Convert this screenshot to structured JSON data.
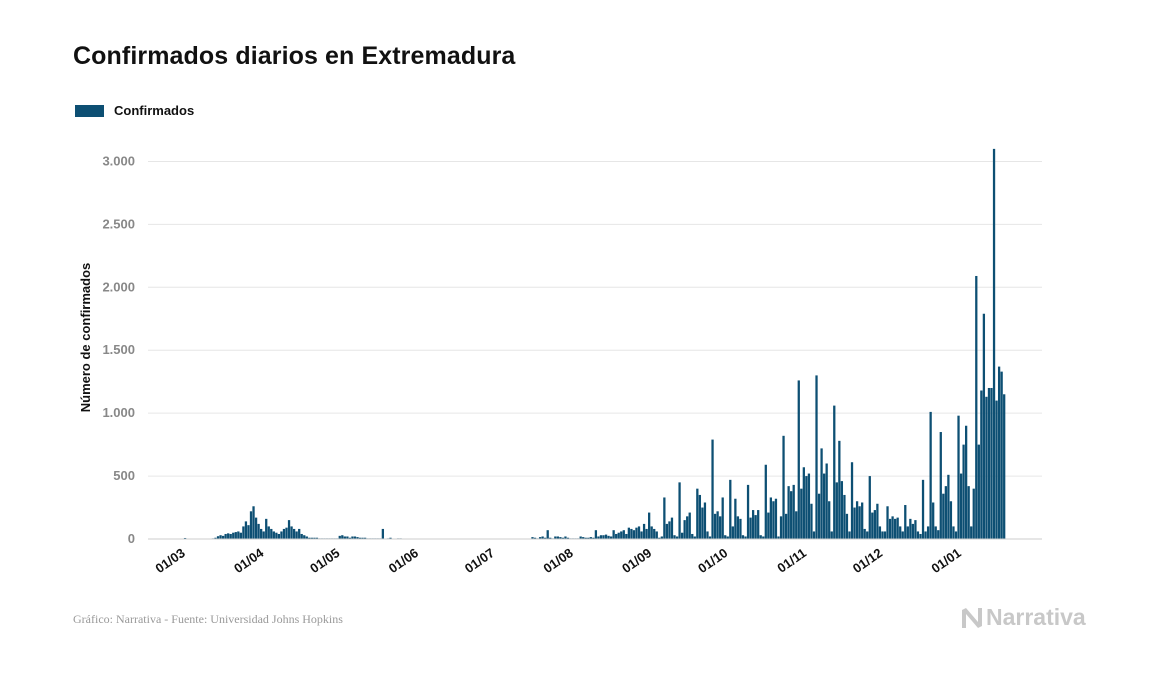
{
  "chart_data": {
    "type": "bar",
    "title": "Confirmados diarios en Extremadura",
    "legend": {
      "placement": "top-left",
      "entries": [
        "Confirmados"
      ]
    },
    "ylabel": "Número de confirmados",
    "xlabel": "",
    "ylim": [
      0,
      3250
    ],
    "yticks": [
      0,
      500,
      1000,
      1500,
      2000,
      2500,
      3000
    ],
    "ytick_labels": [
      "0",
      "500",
      "1.000",
      "1.500",
      "2.000",
      "2.500",
      "3.000"
    ],
    "x_tick_labels": [
      "01/03",
      "01/04",
      "01/05",
      "01/06",
      "01/07",
      "01/08",
      "01/09",
      "01/10",
      "01/11",
      "01/12",
      "01/01"
    ],
    "x_tick_dates": [
      "2020-03-01",
      "2020-04-01",
      "2020-05-01",
      "2020-06-01",
      "2020-07-01",
      "2020-08-01",
      "2020-09-01",
      "2020-10-01",
      "2020-11-01",
      "2020-12-01",
      "2021-01-01"
    ],
    "x_start": "2020-02-26",
    "grid": true,
    "series": [
      {
        "name": "Confirmados",
        "color": "#0d4f73",
        "values": [
          0,
          0,
          0,
          0,
          0,
          0,
          8,
          0,
          0,
          0,
          0,
          0,
          0,
          0,
          0,
          0,
          0,
          5,
          10,
          22,
          30,
          25,
          40,
          45,
          40,
          50,
          55,
          60,
          50,
          100,
          140,
          110,
          220,
          260,
          170,
          120,
          80,
          60,
          160,
          100,
          80,
          60,
          50,
          40,
          60,
          80,
          90,
          150,
          100,
          80,
          60,
          80,
          40,
          30,
          20,
          10,
          10,
          10,
          10,
          5,
          5,
          5,
          5,
          5,
          5,
          5,
          5,
          25,
          30,
          20,
          20,
          10,
          20,
          20,
          15,
          10,
          10,
          10,
          5,
          5,
          5,
          5,
          5,
          5,
          80,
          0,
          5,
          10,
          0,
          0,
          5,
          5,
          2,
          2,
          2,
          2,
          2,
          2,
          2,
          2,
          2,
          2,
          2,
          2,
          2,
          2,
          2,
          2,
          2,
          2,
          2,
          2,
          2,
          2,
          2,
          2,
          2,
          2,
          2,
          2,
          2,
          2,
          2,
          2,
          2,
          2,
          2,
          2,
          2,
          2,
          2,
          2,
          2,
          2,
          2,
          2,
          2,
          2,
          2,
          2,
          2,
          2,
          2,
          15,
          10,
          5,
          15,
          20,
          10,
          70,
          10,
          5,
          20,
          20,
          15,
          10,
          20,
          10,
          5,
          5,
          5,
          5,
          20,
          15,
          10,
          10,
          15,
          10,
          70,
          20,
          30,
          30,
          35,
          25,
          20,
          70,
          40,
          50,
          60,
          70,
          40,
          90,
          80,
          70,
          90,
          100,
          60,
          120,
          80,
          210,
          100,
          80,
          60,
          10,
          20,
          330,
          120,
          140,
          170,
          30,
          20,
          450,
          50,
          150,
          180,
          210,
          40,
          20,
          400,
          350,
          250,
          290,
          60,
          20,
          790,
          200,
          220,
          180,
          330,
          30,
          20,
          470,
          100,
          320,
          180,
          160,
          30,
          20,
          430,
          170,
          230,
          190,
          230,
          30,
          20,
          590,
          210,
          330,
          300,
          320,
          20,
          180,
          820,
          200,
          420,
          380,
          430,
          220,
          1260,
          400,
          570,
          500,
          520,
          280,
          60,
          1300,
          360,
          720,
          520,
          600,
          300,
          60,
          1060,
          450,
          780,
          460,
          350,
          200,
          60,
          610,
          250,
          300,
          260,
          290,
          80,
          60,
          500,
          210,
          230,
          280,
          100,
          60,
          60,
          260,
          160,
          180,
          160,
          170,
          100,
          60,
          270,
          100,
          160,
          120,
          150,
          60,
          40,
          470,
          60,
          100,
          1010,
          290,
          100,
          70,
          850,
          360,
          420,
          510,
          300,
          100,
          60,
          980,
          520,
          750,
          900,
          420,
          100,
          400,
          2090,
          750,
          1180,
          1790,
          1130,
          1200,
          1200,
          3100,
          1100,
          1370,
          1330,
          1150
        ]
      }
    ]
  },
  "source": "Gráfico: Narrativa - Fuente: Universidad Johns Hopkins",
  "brand": {
    "name": "Narrativa",
    "icon": "narrativa-n-logo-icon"
  },
  "colors": {
    "bar": "#0d4f73",
    "grid": "#e6e6e6",
    "tick_text": "#888888",
    "brand": "#c8c8c8"
  }
}
